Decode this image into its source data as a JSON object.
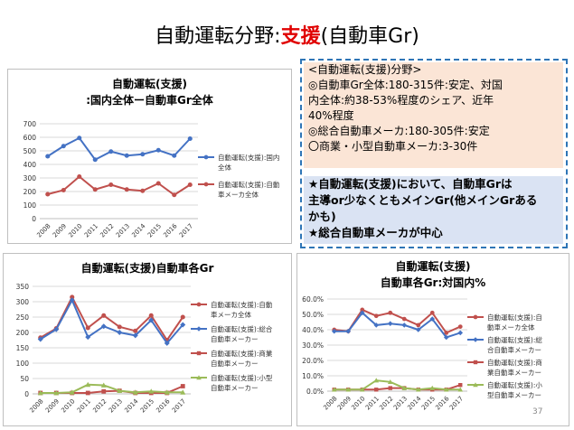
{
  "title": {
    "main": "自動運転分野:",
    "highlight": "支援",
    "suffix": "(自動車Gr)"
  },
  "summary": {
    "lines": [
      "<自動運転(支援)分野>",
      "◎自動車Gr全体:180-315件:安定、対国",
      "内全体:約38-53%程度のシェア、近年",
      "40%程度",
      "◎総合自動車メーカ:180-305件:安定",
      "〇商業・小型自動車メーカ:3-30件"
    ],
    "highlights": [
      "★自動運転(支援)において、自動車Grは",
      "主導or少なくともメインGr(他メインGrある",
      "かも)",
      "★総合自動車メーカが中心"
    ]
  },
  "page_number": "37",
  "colors": {
    "blue": "#4472c4",
    "red": "#c0504d",
    "green": "#9bbb59",
    "orange": "#c0504d",
    "summary_border": "#2e75b6",
    "box1_bg": "#fbe5d6",
    "box2_bg": "#dae3f3",
    "title_highlight": "#e00000"
  },
  "chart_data": [
    {
      "type": "line",
      "title": "自動運転(支援)",
      "subtitle": ":国内全体ー自動車Gr全体",
      "categories": [
        "2008",
        "2009",
        "2010",
        "2011",
        "2012",
        "2013",
        "2014",
        "2015",
        "2016",
        "2017"
      ],
      "ylim": [
        0,
        700
      ],
      "yticks": [
        "0",
        "100",
        "200",
        "300",
        "400",
        "500",
        "600",
        "700"
      ],
      "grid": true,
      "legend": "right",
      "series": [
        {
          "name": "自動運転(支援):国内全体",
          "legend_lines": [
            "自動運転(支援):国内",
            "全体"
          ],
          "marker": "circle",
          "color": "#4472c4",
          "values": [
            460,
            535,
            595,
            435,
            495,
            465,
            475,
            505,
            465,
            590
          ]
        },
        {
          "name": "自動運転(支援):自動車メーカ全体",
          "legend_lines": [
            "自動運転(支援):自動",
            "車メーカ全体"
          ],
          "marker": "circle",
          "color": "#c0504d",
          "values": [
            180,
            210,
            310,
            215,
            250,
            215,
            205,
            260,
            175,
            250
          ]
        }
      ]
    },
    {
      "type": "line",
      "title": "自動運転(支援)自動車各Gr",
      "categories": [
        "2008",
        "2009",
        "2010",
        "2011",
        "2012",
        "2013",
        "2014",
        "2015",
        "2016",
        "2017"
      ],
      "ylim": [
        0,
        350
      ],
      "yticks": [
        "0",
        "50",
        "100",
        "150",
        "200",
        "250",
        "300",
        "350"
      ],
      "grid": true,
      "legend": "right",
      "series": [
        {
          "name": "自動運転(支援):自動車メーカ全体",
          "legend_lines": [
            "自動運転(支援):自動",
            "車メーカ全体"
          ],
          "marker": "circle",
          "color": "#c0504d",
          "values": [
            183,
            213,
            315,
            215,
            255,
            218,
            205,
            255,
            175,
            250
          ]
        },
        {
          "name": "自動運転(支援):総合自動車メーカー",
          "legend_lines": [
            "自動運転(支援):総合",
            "自動車メーカー"
          ],
          "marker": "diamond",
          "color": "#4472c4",
          "values": [
            178,
            210,
            305,
            185,
            220,
            200,
            190,
            240,
            165,
            225
          ]
        },
        {
          "name": "自動運転(支援):商業自動車メーカー",
          "legend_lines": [
            "自動運転(支援):商業",
            "自動車メーカー"
          ],
          "marker": "square",
          "color": "#c0504d",
          "values": [
            3,
            3,
            3,
            3,
            8,
            10,
            3,
            3,
            3,
            25
          ]
        },
        {
          "name": "自動運転(支援):小型自動車メーカー",
          "legend_lines": [
            "自動運転(支援):小型",
            "自動車メーカー"
          ],
          "marker": "triangle",
          "color": "#9bbb59",
          "values": [
            3,
            3,
            5,
            30,
            28,
            10,
            5,
            8,
            5,
            5
          ]
        }
      ]
    },
    {
      "type": "line",
      "title": "自動運転(支援)",
      "subtitle": "自動車各Gr:対国内%",
      "categories": [
        "2008",
        "2009",
        "2010",
        "2011",
        "2012",
        "2013",
        "2014",
        "2015",
        "2016",
        "2017"
      ],
      "ylim": [
        0,
        60
      ],
      "yticks": [
        "0.0%",
        "10.0%",
        "20.0%",
        "30.0%",
        "40.0%",
        "50.0%",
        "60.0%"
      ],
      "grid": true,
      "legend": "right",
      "series": [
        {
          "name": "自動運転(支援):自動車メーカ全体",
          "legend_lines": [
            "自動運転(支援):自",
            "動車メーカ全体"
          ],
          "marker": "circle",
          "color": "#c0504d",
          "values": [
            40,
            39,
            53,
            49,
            51,
            47,
            43,
            51,
            38,
            42
          ]
        },
        {
          "name": "自動運転(支援):総合自動車メーカー",
          "legend_lines": [
            "自動運転(支援):総",
            "合自動車メーカー"
          ],
          "marker": "diamond",
          "color": "#4472c4",
          "values": [
            39,
            39,
            51,
            43,
            44,
            43,
            40,
            47,
            35,
            38
          ]
        },
        {
          "name": "自動運転(支援):商業自動車メーカー",
          "legend_lines": [
            "自動運転(支援):商",
            "業自動車メーカー"
          ],
          "marker": "square",
          "color": "#c0504d",
          "values": [
            1,
            1,
            1,
            1,
            2,
            2,
            1,
            1,
            1,
            4
          ]
        },
        {
          "name": "自動運転(支援):小型自動車メーカー",
          "legend_lines": [
            "自動運転(支援):小",
            "型自動車メーカー"
          ],
          "marker": "triangle",
          "color": "#9bbb59",
          "values": [
            1,
            1,
            1,
            7,
            6,
            2,
            1,
            2,
            1,
            1
          ]
        }
      ]
    }
  ]
}
